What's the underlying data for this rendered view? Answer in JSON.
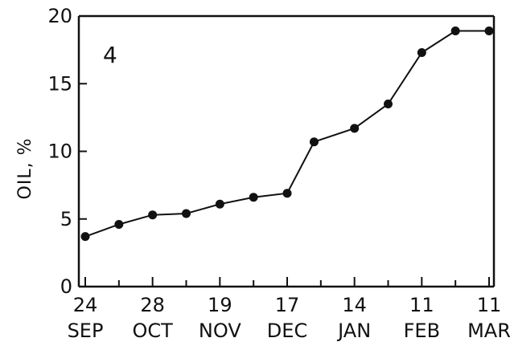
{
  "chart_data": {
    "type": "line",
    "panel_label": "4",
    "xlabel": "",
    "ylabel": "OIL, %",
    "ylim": [
      0,
      20
    ],
    "y_ticks": [
      "0",
      "5",
      "10",
      "15",
      "20"
    ],
    "x_tick_labels": [
      {
        "day": "24",
        "month": "SEP"
      },
      {
        "day": "28",
        "month": "OCT"
      },
      {
        "day": "19",
        "month": "NOV"
      },
      {
        "day": "17",
        "month": "DEC"
      },
      {
        "day": "14",
        "month": "JAN"
      },
      {
        "day": "11",
        "month": "FEB"
      },
      {
        "day": "11",
        "month": "MAR"
      }
    ],
    "grid": false,
    "series": [
      {
        "values": [
          3.7,
          4.6,
          5.3,
          5.4,
          6.1,
          6.6,
          6.9,
          10.7,
          11.7,
          13.5,
          17.3,
          18.9,
          18.9
        ]
      }
    ],
    "x_positions": [
      0,
      0.5,
      1,
      1.5,
      2,
      2.5,
      3,
      3.4,
      4,
      4.5,
      5,
      5.5,
      6
    ]
  }
}
